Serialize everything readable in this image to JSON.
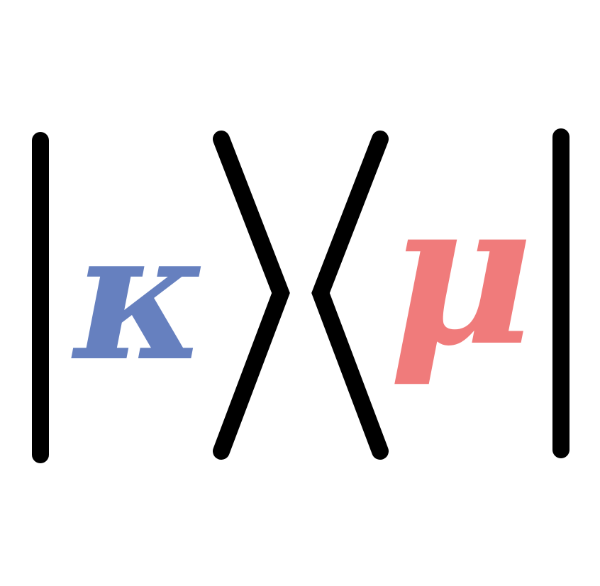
{
  "logo": {
    "kappa": "κ",
    "mu": "μ",
    "kappa_color": "#6680bf",
    "mu_color": "#f07b7b",
    "stroke_color": "#000000"
  }
}
